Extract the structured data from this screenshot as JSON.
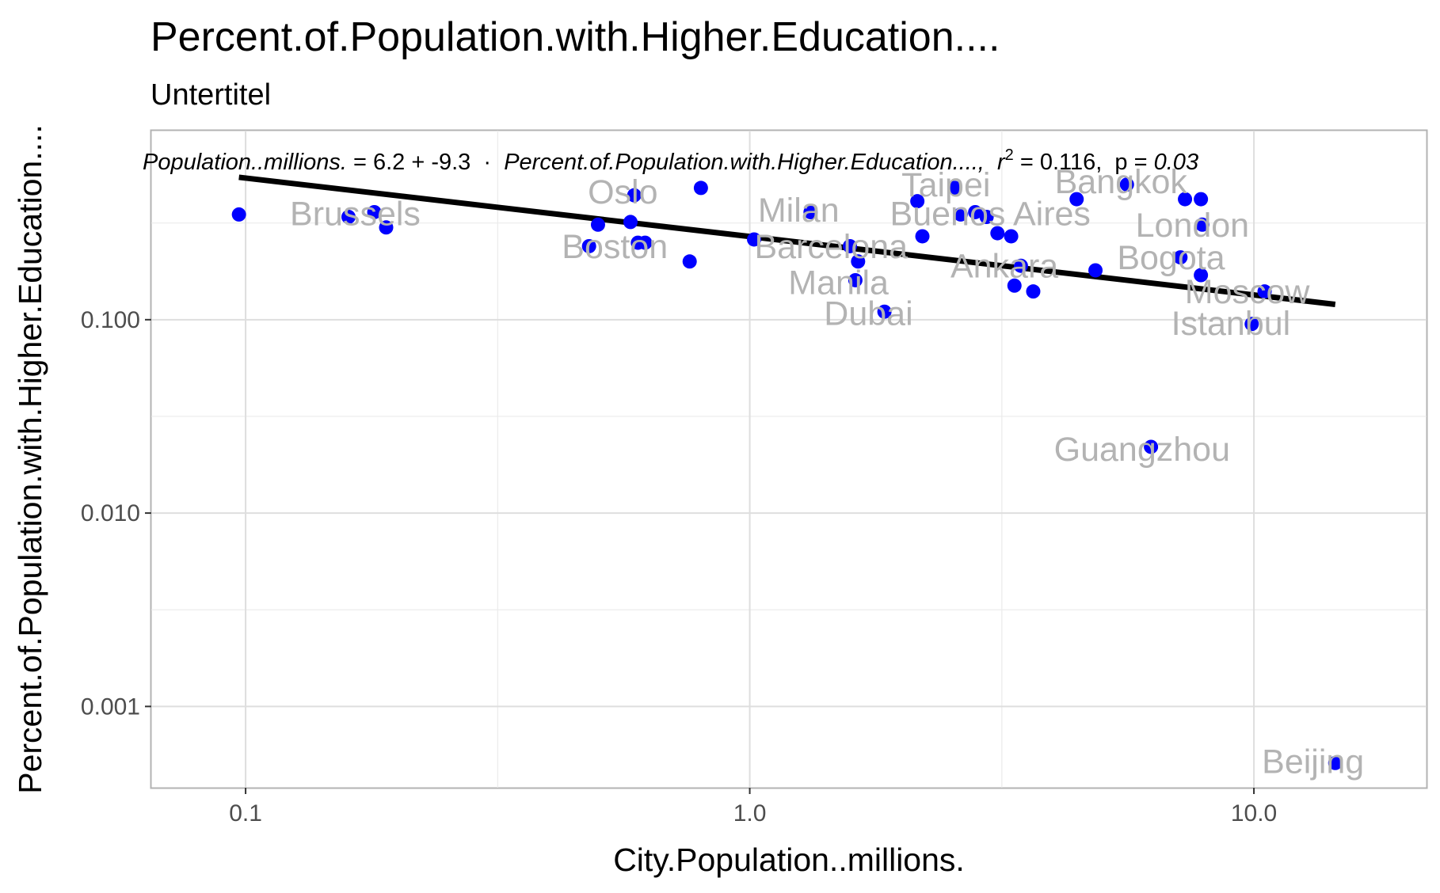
{
  "chart_data": {
    "type": "scatter",
    "title": "Percent.of.Population.with.Higher.Education....",
    "subtitle": "Untertitel",
    "xlabel": "City.Population..millions.",
    "ylabel": "Percent.of.Population.with.Higher.Education....",
    "x_scale": "log10",
    "y_scale": "log10",
    "xlim": [
      0.065,
      22
    ],
    "ylim": [
      0.00038,
      0.95
    ],
    "x_ticks": [
      {
        "value": 0.1,
        "label": "0.1"
      },
      {
        "value": 1.0,
        "label": "1.0"
      },
      {
        "value": 10.0,
        "label": "10.0"
      }
    ],
    "y_ticks": [
      {
        "value": 0.1,
        "label": "0.100"
      },
      {
        "value": 0.01,
        "label": "0.010"
      },
      {
        "value": 0.001,
        "label": "0.001"
      }
    ],
    "grid": true,
    "point_color": "#0000ff",
    "line_color": "#000000",
    "label_color": "#b3b3b3",
    "points": [
      {
        "x": 0.097,
        "y": 0.35
      },
      {
        "x": 0.16,
        "y": 0.34
      },
      {
        "x": 0.18,
        "y": 0.36
      },
      {
        "x": 0.19,
        "y": 0.3
      },
      {
        "x": 0.48,
        "y": 0.24
      },
      {
        "x": 0.5,
        "y": 0.31
      },
      {
        "x": 0.58,
        "y": 0.32
      },
      {
        "x": 0.59,
        "y": 0.44
      },
      {
        "x": 0.6,
        "y": 0.25
      },
      {
        "x": 0.62,
        "y": 0.25
      },
      {
        "x": 0.76,
        "y": 0.2
      },
      {
        "x": 0.8,
        "y": 0.48
      },
      {
        "x": 1.02,
        "y": 0.26
      },
      {
        "x": 1.32,
        "y": 0.36
      },
      {
        "x": 1.58,
        "y": 0.24
      },
      {
        "x": 1.62,
        "y": 0.16
      },
      {
        "x": 1.64,
        "y": 0.2
      },
      {
        "x": 1.85,
        "y": 0.11
      },
      {
        "x": 2.15,
        "y": 0.41
      },
      {
        "x": 2.2,
        "y": 0.27
      },
      {
        "x": 2.55,
        "y": 0.48
      },
      {
        "x": 2.62,
        "y": 0.35
      },
      {
        "x": 2.8,
        "y": 0.36
      },
      {
        "x": 2.95,
        "y": 0.34
      },
      {
        "x": 3.1,
        "y": 0.28
      },
      {
        "x": 3.3,
        "y": 0.27
      },
      {
        "x": 3.35,
        "y": 0.15
      },
      {
        "x": 3.45,
        "y": 0.19
      },
      {
        "x": 3.65,
        "y": 0.14
      },
      {
        "x": 4.45,
        "y": 0.42
      },
      {
        "x": 4.85,
        "y": 0.18
      },
      {
        "x": 5.6,
        "y": 0.5
      },
      {
        "x": 6.25,
        "y": 0.022
      },
      {
        "x": 7.15,
        "y": 0.21
      },
      {
        "x": 7.3,
        "y": 0.42
      },
      {
        "x": 7.85,
        "y": 0.42
      },
      {
        "x": 7.9,
        "y": 0.31
      },
      {
        "x": 7.85,
        "y": 0.17
      },
      {
        "x": 9.9,
        "y": 0.095
      },
      {
        "x": 10.5,
        "y": 0.14
      },
      {
        "x": 14.5,
        "y": 0.00051
      }
    ],
    "point_labels": [
      {
        "text": "Brussels",
        "x": 0.165,
        "y": 0.355
      },
      {
        "text": "Oslo",
        "x": 0.56,
        "y": 0.46
      },
      {
        "text": "Boston",
        "x": 0.54,
        "y": 0.24
      },
      {
        "text": "Milan",
        "x": 1.25,
        "y": 0.37
      },
      {
        "text": "Barcelona",
        "x": 1.45,
        "y": 0.24
      },
      {
        "text": "Manila",
        "x": 1.5,
        "y": 0.156
      },
      {
        "text": "Dubai",
        "x": 1.72,
        "y": 0.108
      },
      {
        "text": "Taipei",
        "x": 2.45,
        "y": 0.5
      },
      {
        "text": "Buenos Aires",
        "x": 3.0,
        "y": 0.355
      },
      {
        "text": "Ankara",
        "x": 3.2,
        "y": 0.19
      },
      {
        "text": "Bangkok",
        "x": 5.45,
        "y": 0.52
      },
      {
        "text": "London",
        "x": 7.55,
        "y": 0.31
      },
      {
        "text": "Bogota",
        "x": 6.85,
        "y": 0.21
      },
      {
        "text": "Moscow",
        "x": 9.7,
        "y": 0.14
      },
      {
        "text": "Istanbul",
        "x": 9.0,
        "y": 0.096
      },
      {
        "text": "Guangzhou",
        "x": 6.0,
        "y": 0.0215
      },
      {
        "text": "Beijing",
        "x": 13.1,
        "y": 0.00052
      }
    ],
    "regression": {
      "x_start": 0.097,
      "y_start": 0.545,
      "x_end": 14.5,
      "y_end": 0.12,
      "eq_lhs": "Population..millions.",
      "eq_mid": " = 6.2 + -9.3  ·  ",
      "eq_var": "Percent.of.Population.with.Higher.Education....,",
      "r2_label": "r",
      "r2_sup": "2",
      "r2_value": " = 0.116,  p = ",
      "p_value": "0.03"
    }
  }
}
